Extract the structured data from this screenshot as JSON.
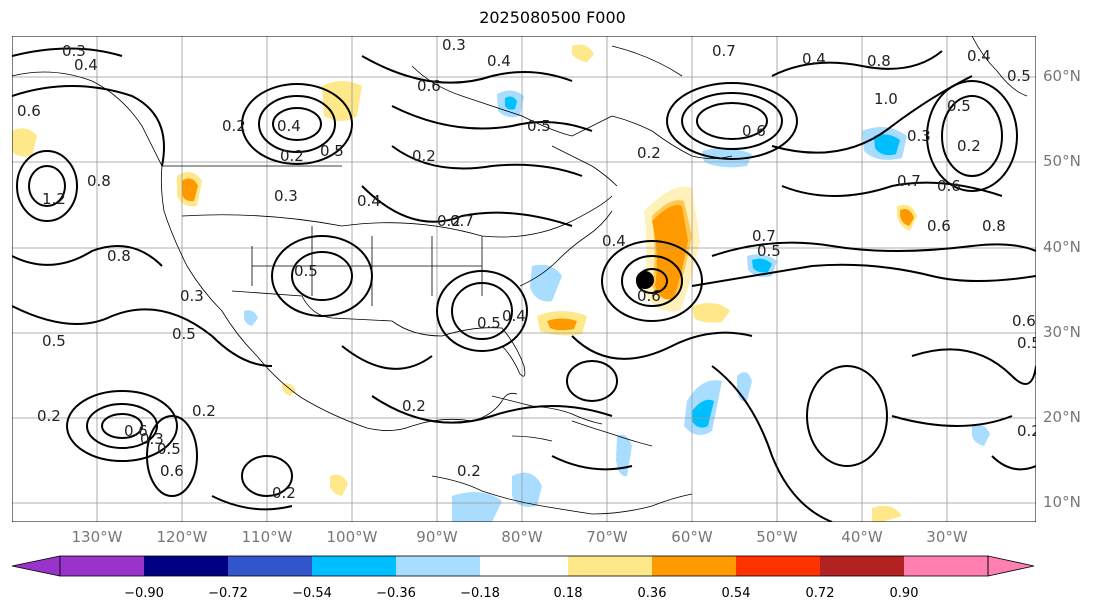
{
  "title": "2025080500 F000",
  "lat_labels": [
    "60°N",
    "50°N",
    "40°N",
    "30°N",
    "20°N",
    "10°N"
  ],
  "lon_labels": [
    "130°W",
    "120°W",
    "110°W",
    "100°W",
    "90°W",
    "80°W",
    "70°W",
    "60°W",
    "50°W",
    "40°W",
    "30°W"
  ],
  "colorbar": {
    "colors": [
      "#9933cc",
      "#000080",
      "#3355cc",
      "#00bfff",
      "#a8ddff",
      "#ffffff",
      "#ffe88a",
      "#ff9900",
      "#ff3300",
      "#b22222",
      "#ff7fb0"
    ],
    "ticks": [
      "−0.90",
      "−0.72",
      "−0.54",
      "−0.36",
      "−0.18",
      "0.18",
      "0.36",
      "0.54",
      "0.72",
      "0.90"
    ]
  },
  "contour_labels": [
    "0.3",
    "0.4",
    "0.3",
    "0.4",
    "0.7",
    "0.4",
    "0.8",
    "0.4",
    "0.5",
    "0.6",
    "0.2",
    "0.4",
    "0.2",
    "0.5",
    "0.2",
    "0.3",
    "0.5",
    "0.6",
    "0.2",
    "1.0",
    "0.5",
    "0.3",
    "0.2",
    "0.7",
    "0.6",
    "0.8",
    "0.6",
    "0.4",
    "0.2",
    "0.4",
    "0.5",
    "0.7",
    "0.5",
    "0.3",
    "0.8",
    "0.5",
    "0.4",
    "0.5",
    "0.6",
    "0.5",
    "0.2",
    "0.6",
    "0.2",
    "0.3",
    "0.5",
    "0.6",
    "0.2",
    "0.2",
    "0.2",
    "0.6",
    "0.2",
    "0.5",
    "1.2",
    "0.8",
    "0.6",
    "0.7"
  ],
  "marker": {
    "name": "storm-center",
    "lon": -66,
    "lat": 36
  }
}
